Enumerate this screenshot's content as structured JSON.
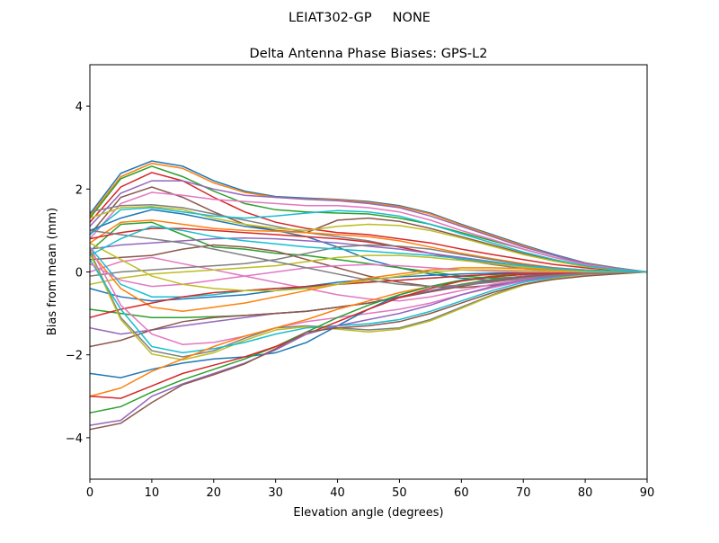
{
  "suptitle": "LEIAT302-GP     NONE",
  "chart_data": {
    "type": "line",
    "title": "Delta Antenna Phase Biases: GPS-L2",
    "xlabel": "Elevation angle (degrees)",
    "ylabel": "Bias from mean (mm)",
    "xlim": [
      0,
      90
    ],
    "ylim": [
      -5,
      5
    ],
    "xticks": [
      0,
      10,
      20,
      30,
      40,
      50,
      60,
      70,
      80,
      90
    ],
    "yticks": [
      -4,
      -2,
      0,
      2,
      4
    ],
    "grid": false,
    "colors": [
      "#1f77b4",
      "#ff7f0e",
      "#2ca02c",
      "#d62728",
      "#9467bd",
      "#8c564b",
      "#e377c2",
      "#7f7f7f",
      "#bcbd22",
      "#17becf"
    ],
    "x": [
      0,
      5,
      10,
      15,
      20,
      25,
      30,
      35,
      40,
      45,
      50,
      55,
      60,
      65,
      70,
      75,
      80,
      85,
      90
    ],
    "series": [
      {
        "values": [
          1.4,
          2.38,
          2.68,
          2.55,
          2.2,
          1.95,
          1.82,
          1.78,
          1.75,
          1.7,
          1.6,
          1.42,
          1.15,
          0.9,
          0.65,
          0.42,
          0.22,
          0.1,
          0
        ]
      },
      {
        "values": [
          1.35,
          2.3,
          2.62,
          2.5,
          2.15,
          1.92,
          1.8,
          1.76,
          1.74,
          1.68,
          1.58,
          1.4,
          1.13,
          0.88,
          0.63,
          0.4,
          0.21,
          0.09,
          0
        ]
      },
      {
        "values": [
          1.3,
          2.25,
          2.55,
          2.3,
          1.95,
          1.65,
          1.5,
          1.45,
          1.42,
          1.4,
          1.3,
          1.15,
          0.95,
          0.75,
          0.55,
          0.35,
          0.2,
          0.08,
          0
        ]
      },
      {
        "values": [
          1.2,
          2.05,
          2.4,
          2.2,
          1.8,
          1.45,
          1.2,
          1.05,
          0.95,
          0.9,
          0.8,
          0.7,
          0.55,
          0.42,
          0.3,
          0.18,
          0.1,
          0.04,
          0
        ]
      },
      {
        "values": [
          1.1,
          1.9,
          2.2,
          2.2,
          2.0,
          1.85,
          1.8,
          1.75,
          1.72,
          1.65,
          1.55,
          1.35,
          1.1,
          0.85,
          0.6,
          0.4,
          0.2,
          0.08,
          0
        ]
      },
      {
        "values": [
          0.9,
          1.8,
          2.05,
          1.8,
          1.45,
          1.15,
          1.0,
          0.95,
          1.25,
          1.3,
          1.22,
          1.05,
          0.85,
          0.65,
          0.45,
          0.28,
          0.15,
          0.06,
          0
        ]
      },
      {
        "values": [
          0.8,
          1.65,
          1.92,
          1.85,
          1.75,
          1.7,
          1.65,
          1.6,
          1.6,
          1.55,
          1.45,
          1.25,
          1.0,
          0.78,
          0.55,
          0.35,
          0.18,
          0.07,
          0
        ]
      },
      {
        "values": [
          1.45,
          1.6,
          1.62,
          1.55,
          1.4,
          1.25,
          1.1,
          0.95,
          0.85,
          0.75,
          0.6,
          0.45,
          0.3,
          0.18,
          0.08,
          0.02,
          0,
          0,
          0
        ]
      },
      {
        "values": [
          1.3,
          1.55,
          1.58,
          1.5,
          1.3,
          1.15,
          1.05,
          1.0,
          1.1,
          1.15,
          1.12,
          1.0,
          0.82,
          0.62,
          0.42,
          0.26,
          0.13,
          0.05,
          0
        ]
      },
      {
        "values": [
          0.9,
          1.5,
          1.55,
          1.45,
          1.35,
          1.3,
          1.35,
          1.42,
          1.48,
          1.45,
          1.35,
          1.15,
          0.92,
          0.7,
          0.48,
          0.3,
          0.15,
          0.06,
          0
        ]
      },
      {
        "values": [
          1.0,
          1.3,
          1.5,
          1.4,
          1.25,
          1.1,
          1.0,
          0.85,
          0.6,
          0.3,
          0.1,
          -0.05,
          -0.15,
          -0.2,
          -0.18,
          -0.12,
          -0.07,
          -0.03,
          0
        ]
      },
      {
        "values": [
          0.7,
          1.2,
          1.25,
          1.15,
          1.05,
          1.0,
          0.98,
          0.95,
          0.9,
          0.85,
          0.75,
          0.6,
          0.45,
          0.32,
          0.2,
          0.1,
          0.05,
          0.02,
          0
        ]
      },
      {
        "values": [
          0.5,
          1.15,
          1.2,
          0.9,
          0.6,
          0.55,
          0.45,
          0.4,
          0.3,
          0.2,
          0.1,
          0.0,
          -0.1,
          -0.15,
          -0.12,
          -0.08,
          -0.05,
          -0.02,
          0
        ]
      },
      {
        "values": [
          0.8,
          0.95,
          1.05,
          1.05,
          1.0,
          0.95,
          0.9,
          0.85,
          0.8,
          0.72,
          0.6,
          0.45,
          0.32,
          0.22,
          0.12,
          0.06,
          0.03,
          0.01,
          0
        ]
      },
      {
        "values": [
          0.55,
          0.65,
          0.7,
          0.75,
          0.8,
          0.82,
          0.8,
          0.75,
          0.7,
          0.62,
          0.55,
          0.45,
          0.35,
          0.25,
          0.15,
          0.08,
          0.04,
          0.02,
          0
        ]
      },
      {
        "values": [
          0.3,
          0.35,
          0.4,
          0.55,
          0.65,
          0.6,
          0.5,
          0.3,
          0.1,
          -0.1,
          -0.25,
          -0.35,
          -0.38,
          -0.32,
          -0.22,
          -0.12,
          -0.06,
          -0.02,
          0
        ]
      },
      {
        "values": [
          0.0,
          0.25,
          0.35,
          0.2,
          0.05,
          -0.1,
          -0.25,
          -0.4,
          -0.55,
          -0.65,
          -0.7,
          -0.6,
          -0.45,
          -0.3,
          -0.18,
          -0.1,
          -0.05,
          -0.02,
          0
        ]
      },
      {
        "values": [
          -0.1,
          0.0,
          0.05,
          0.1,
          0.15,
          0.2,
          0.3,
          0.45,
          0.6,
          0.65,
          0.62,
          0.55,
          0.42,
          0.3,
          0.18,
          0.1,
          0.05,
          0.02,
          0
        ]
      },
      {
        "values": [
          -0.3,
          -0.15,
          -0.05,
          0.0,
          0.05,
          0.1,
          0.15,
          0.25,
          0.35,
          0.4,
          0.4,
          0.35,
          0.28,
          0.2,
          0.12,
          0.06,
          0.03,
          0.01,
          0
        ]
      },
      {
        "values": [
          0.6,
          -0.3,
          -0.6,
          -0.6,
          -0.55,
          -0.45,
          -0.4,
          -0.38,
          -0.3,
          -0.25,
          -0.2,
          -0.15,
          -0.1,
          -0.06,
          -0.03,
          -0.01,
          0,
          0,
          0
        ]
      },
      {
        "values": [
          -0.4,
          -0.6,
          -0.7,
          -0.65,
          -0.6,
          -0.55,
          -0.45,
          -0.35,
          -0.25,
          -0.18,
          -0.12,
          -0.08,
          -0.05,
          -0.03,
          -0.01,
          0,
          0,
          0,
          0
        ]
      },
      {
        "values": [
          0.5,
          -0.4,
          -0.85,
          -0.95,
          -0.85,
          -0.75,
          -0.6,
          -0.45,
          -0.3,
          -0.15,
          -0.05,
          0.05,
          0.1,
          0.1,
          0.08,
          0.05,
          0.02,
          0.01,
          0
        ]
      },
      {
        "values": [
          -0.9,
          -1.0,
          -1.1,
          -1.1,
          -1.08,
          -1.05,
          -1.0,
          -0.95,
          -0.85,
          -0.75,
          -0.6,
          -0.45,
          -0.3,
          -0.18,
          -0.1,
          -0.05,
          -0.02,
          -0.01,
          0
        ]
      },
      {
        "values": [
          -1.1,
          -0.9,
          -0.75,
          -0.6,
          -0.5,
          -0.45,
          -0.4,
          -0.35,
          -0.3,
          -0.25,
          -0.2,
          -0.15,
          -0.1,
          -0.06,
          -0.03,
          -0.01,
          0,
          0,
          0
        ]
      },
      {
        "values": [
          -1.35,
          -1.5,
          -1.4,
          -1.3,
          -1.2,
          -1.1,
          -1.0,
          -0.95,
          -0.85,
          -0.75,
          -0.6,
          -0.45,
          -0.32,
          -0.2,
          -0.1,
          -0.05,
          -0.02,
          -0.01,
          0
        ]
      },
      {
        "values": [
          -1.8,
          -1.65,
          -1.4,
          -1.2,
          -1.1,
          -1.05,
          -1.0,
          -0.95,
          -0.85,
          -0.75,
          -0.62,
          -0.48,
          -0.35,
          -0.22,
          -0.12,
          -0.06,
          -0.03,
          -0.01,
          0
        ]
      },
      {
        "values": [
          0.6,
          -0.8,
          -1.5,
          -1.75,
          -1.7,
          -1.55,
          -1.35,
          -1.2,
          -1.1,
          -1.0,
          -0.9,
          -0.75,
          -0.55,
          -0.38,
          -0.22,
          -0.12,
          -0.06,
          -0.02,
          0
        ]
      },
      {
        "values": [
          0.5,
          -1.1,
          -1.9,
          -2.05,
          -1.9,
          -1.6,
          -1.35,
          -1.3,
          -1.35,
          -1.4,
          -1.35,
          -1.15,
          -0.85,
          -0.55,
          -0.3,
          -0.15,
          -0.07,
          -0.03,
          0
        ]
      },
      {
        "values": [
          0.45,
          -1.15,
          -1.98,
          -2.12,
          -1.95,
          -1.65,
          -1.4,
          -1.32,
          -1.38,
          -1.45,
          -1.38,
          -1.18,
          -0.88,
          -0.57,
          -0.32,
          -0.16,
          -0.07,
          -0.03,
          0
        ]
      },
      {
        "values": [
          0.3,
          -0.9,
          -1.8,
          -1.95,
          -1.85,
          -1.7,
          -1.5,
          -1.35,
          -1.3,
          -1.25,
          -1.15,
          -0.95,
          -0.7,
          -0.45,
          -0.25,
          -0.12,
          -0.05,
          -0.02,
          0
        ]
      },
      {
        "values": [
          -2.45,
          -2.55,
          -2.35,
          -2.2,
          -2.1,
          -2.05,
          -1.95,
          -1.7,
          -1.3,
          -0.9,
          -0.55,
          -0.35,
          -0.2,
          -0.12,
          -0.06,
          -0.03,
          -0.01,
          0,
          0
        ]
      },
      {
        "values": [
          -3.0,
          -2.8,
          -2.4,
          -2.1,
          -1.8,
          -1.55,
          -1.35,
          -1.15,
          -0.9,
          -0.7,
          -0.5,
          -0.35,
          -0.22,
          -0.12,
          -0.06,
          -0.03,
          -0.01,
          0,
          0
        ]
      },
      {
        "values": [
          -3.4,
          -3.25,
          -2.9,
          -2.6,
          -2.35,
          -2.1,
          -1.8,
          -1.45,
          -1.1,
          -0.8,
          -0.55,
          -0.35,
          -0.2,
          -0.1,
          -0.05,
          -0.02,
          -0.01,
          0,
          0
        ]
      },
      {
        "values": [
          -3.0,
          -3.05,
          -2.75,
          -2.45,
          -2.25,
          -2.05,
          -1.8,
          -1.5,
          -1.2,
          -0.9,
          -0.62,
          -0.4,
          -0.22,
          -0.12,
          -0.06,
          -0.03,
          -0.01,
          0,
          0
        ]
      },
      {
        "values": [
          -3.7,
          -3.58,
          -3.0,
          -2.7,
          -2.45,
          -2.2,
          -1.88,
          -1.5,
          -1.3,
          -1.15,
          -1.0,
          -0.8,
          -0.55,
          -0.35,
          -0.2,
          -0.1,
          -0.05,
          -0.02,
          0
        ]
      },
      {
        "values": [
          -3.8,
          -3.65,
          -3.15,
          -2.72,
          -2.48,
          -2.22,
          -1.85,
          -1.45,
          -1.35,
          -1.3,
          -1.2,
          -1.0,
          -0.75,
          -0.5,
          -0.3,
          -0.18,
          -0.1,
          -0.05,
          0
        ]
      },
      {
        "values": [
          0.2,
          -0.2,
          -0.35,
          -0.3,
          -0.2,
          -0.1,
          0.0,
          0.1,
          0.15,
          0.18,
          0.15,
          0.1,
          0.05,
          0.02,
          0,
          0,
          0,
          0,
          0
        ]
      },
      {
        "values": [
          1.0,
          0.9,
          0.8,
          0.7,
          0.55,
          0.4,
          0.25,
          0.1,
          -0.05,
          -0.2,
          -0.3,
          -0.35,
          -0.32,
          -0.25,
          -0.15,
          -0.08,
          -0.04,
          -0.01,
          0
        ]
      },
      {
        "values": [
          0.7,
          0.3,
          -0.1,
          -0.3,
          -0.4,
          -0.45,
          -0.45,
          -0.4,
          -0.3,
          -0.2,
          -0.1,
          0.0,
          0.05,
          0.05,
          0.04,
          0.02,
          0.01,
          0,
          0
        ]
      },
      {
        "values": [
          0.4,
          0.8,
          1.1,
          1.0,
          0.85,
          0.75,
          0.68,
          0.6,
          0.55,
          0.5,
          0.45,
          0.4,
          0.32,
          0.24,
          0.15,
          0.08,
          0.04,
          0.01,
          0
        ]
      }
    ]
  }
}
